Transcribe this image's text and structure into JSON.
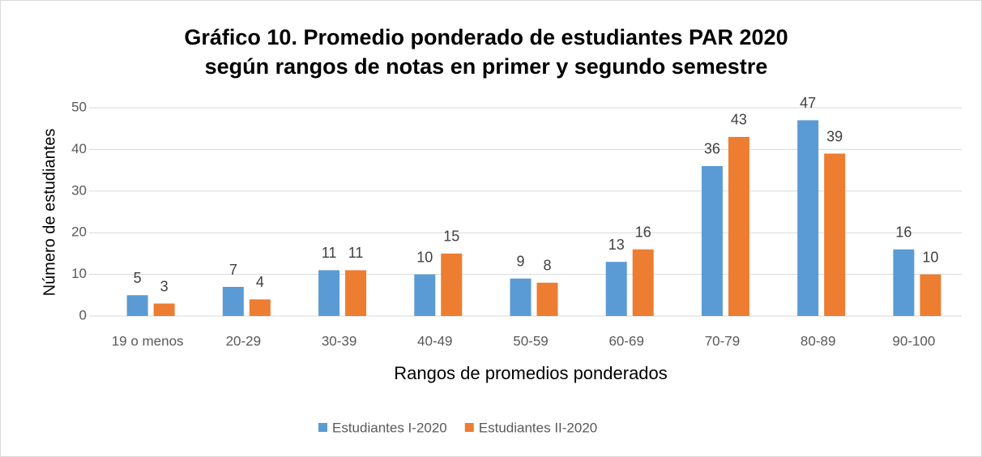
{
  "chart_data": {
    "type": "bar",
    "title": [
      "Gráfico 10. Promedio ponderado de estudiantes PAR 2020",
      "según rangos de notas  en primer y segundo semestre"
    ],
    "x_label": "Rangos de promedios ponderados",
    "y_label": "Número de estudiantes",
    "categories": [
      "19 o menos",
      "20-29",
      "30-39",
      "40-49",
      "50-59",
      "60-69",
      "70-79",
      "80-89",
      "90-100"
    ],
    "series": [
      {
        "name": "Estudiantes I-2020",
        "color": "#5b9bd5",
        "values": [
          5,
          7,
          11,
          10,
          9,
          13,
          36,
          47,
          16
        ]
      },
      {
        "name": "Estudiantes II-2020",
        "color": "#ed7d31",
        "values": [
          3,
          4,
          11,
          15,
          8,
          16,
          43,
          39,
          10
        ]
      }
    ],
    "ylim": [
      0,
      50
    ],
    "yticks": [
      0,
      10,
      20,
      30,
      40,
      50
    ],
    "grid": true,
    "legend": "bottom"
  }
}
